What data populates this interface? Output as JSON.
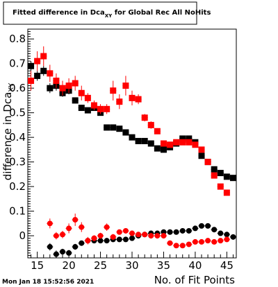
{
  "chart_data": {
    "type": "scatter",
    "title_main": "Fitted difference in Dca",
    "title_sub": "XY",
    "title_rest": " for Global Rec All NoHits",
    "xlabel": "No. of Fit Points",
    "ylabel_main": "difference in Dca",
    "ylabel_sub": "XY",
    "xlim": [
      13.5,
      46.5
    ],
    "ylim": [
      -0.09,
      0.84
    ],
    "xticks": [
      15,
      20,
      25,
      30,
      35,
      40,
      45
    ],
    "yticks": [
      0,
      0.1,
      0.2,
      0.3,
      0.4,
      0.5,
      0.6,
      0.7,
      0.8
    ],
    "ytick_labels": [
      "0",
      "0.1",
      "0.2",
      "0.3",
      "0.4",
      "0.5",
      "0.6",
      "0.7",
      "0.8"
    ],
    "grid": false,
    "timestamp": "Mon Jan 18 15:52:56 2021",
    "series": [
      {
        "color": "#000000",
        "marker": "square",
        "x": [
          14,
          15,
          16,
          17,
          18,
          19,
          20,
          21,
          22,
          23,
          24,
          25,
          26,
          27,
          28,
          29,
          30,
          31,
          32,
          33,
          34,
          35,
          36,
          37,
          38,
          39,
          40,
          41,
          42,
          43,
          44,
          45,
          46
        ],
        "y": [
          0.69,
          0.65,
          0.67,
          0.6,
          0.61,
          0.58,
          0.59,
          0.55,
          0.52,
          0.51,
          0.52,
          0.5,
          0.44,
          0.44,
          0.435,
          0.42,
          0.4,
          0.385,
          0.385,
          0.375,
          0.355,
          0.35,
          0.36,
          0.375,
          0.395,
          0.395,
          0.38,
          0.325,
          0.3,
          0.27,
          0.255,
          0.24,
          0.235
        ],
        "err": [
          0.02,
          0.02,
          0.02,
          0.02,
          0.02,
          0.015,
          0.015,
          0.012,
          0.012,
          0.01,
          0.01,
          0.01,
          0.01,
          0.01,
          0.01,
          0.01,
          0.008,
          0.008,
          0.008,
          0.008,
          0.008,
          0.008,
          0.008,
          0.008,
          0.008,
          0.008,
          0.008,
          0.008,
          0.008,
          0.008,
          0.008,
          0.008,
          0.008
        ]
      },
      {
        "color": "#ff0000",
        "marker": "square",
        "x": [
          14,
          15,
          16,
          17,
          18,
          19,
          20,
          21,
          22,
          23,
          24,
          25,
          26,
          27,
          28,
          29,
          30,
          31,
          32,
          33,
          34,
          35,
          36,
          37,
          38,
          39,
          40,
          41,
          42,
          43,
          44,
          45
        ],
        "y": [
          0.63,
          0.71,
          0.73,
          0.66,
          0.63,
          0.6,
          0.61,
          0.62,
          0.58,
          0.56,
          0.53,
          0.515,
          0.515,
          0.59,
          0.545,
          0.61,
          0.56,
          0.555,
          0.48,
          0.45,
          0.425,
          0.375,
          0.37,
          0.38,
          0.38,
          0.38,
          0.37,
          0.35,
          0.3,
          0.245,
          0.2,
          0.175
        ],
        "err": [
          0.04,
          0.04,
          0.04,
          0.035,
          0.03,
          0.03,
          0.03,
          0.03,
          0.03,
          0.02,
          0.02,
          0.02,
          0.02,
          0.04,
          0.03,
          0.04,
          0.03,
          0.02,
          0.015,
          0.015,
          0.012,
          0.012,
          0.01,
          0.01,
          0.01,
          0.01,
          0.01,
          0.01,
          0.01,
          0.01,
          0.01,
          0.01
        ]
      },
      {
        "color": "#000000",
        "marker": "circle",
        "x": [
          17,
          18,
          19,
          20,
          21,
          22,
          23,
          24,
          25,
          26,
          27,
          28,
          29,
          30,
          31,
          32,
          33,
          34,
          35,
          36,
          37,
          38,
          39,
          40,
          41,
          42,
          43,
          44,
          45,
          46
        ],
        "y": [
          -0.045,
          -0.075,
          -0.065,
          -0.07,
          -0.045,
          -0.03,
          -0.02,
          -0.02,
          -0.02,
          -0.02,
          -0.015,
          -0.015,
          -0.015,
          -0.01,
          0.0,
          0.005,
          0.01,
          0.01,
          0.015,
          0.015,
          0.015,
          0.02,
          0.02,
          0.03,
          0.04,
          0.04,
          0.025,
          0.01,
          0.005,
          -0.005
        ],
        "err": [
          0.015,
          0.015,
          0.012,
          0.012,
          0.012,
          0.01,
          0.01,
          0.01,
          0.008,
          0.008,
          0.008,
          0.008,
          0.008,
          0.008,
          0.006,
          0.006,
          0.006,
          0.006,
          0.006,
          0.006,
          0.006,
          0.006,
          0.006,
          0.006,
          0.006,
          0.006,
          0.006,
          0.006,
          0.006,
          0.006
        ]
      },
      {
        "color": "#ff0000",
        "marker": "circle",
        "x": [
          17,
          18,
          19,
          20,
          21,
          22,
          23,
          24,
          25,
          26,
          27,
          28,
          29,
          30,
          31,
          32,
          33,
          34,
          35,
          36,
          37,
          38,
          39,
          40,
          41,
          42,
          43,
          44,
          45
        ],
        "y": [
          0.05,
          0.0,
          0.005,
          0.03,
          0.065,
          0.035,
          -0.02,
          -0.01,
          0.0,
          0.035,
          -0.005,
          0.015,
          0.02,
          0.01,
          0.005,
          0.005,
          0.0,
          0.0,
          0.0,
          -0.03,
          -0.04,
          -0.04,
          -0.035,
          -0.025,
          -0.025,
          -0.02,
          -0.025,
          -0.02,
          -0.015
        ],
        "err": [
          0.02,
          0.015,
          0.015,
          0.02,
          0.025,
          0.02,
          0.015,
          0.012,
          0.012,
          0.015,
          0.012,
          0.01,
          0.01,
          0.01,
          0.01,
          0.008,
          0.008,
          0.008,
          0.008,
          0.008,
          0.008,
          0.008,
          0.008,
          0.008,
          0.008,
          0.008,
          0.008,
          0.008,
          0.008
        ]
      }
    ]
  }
}
